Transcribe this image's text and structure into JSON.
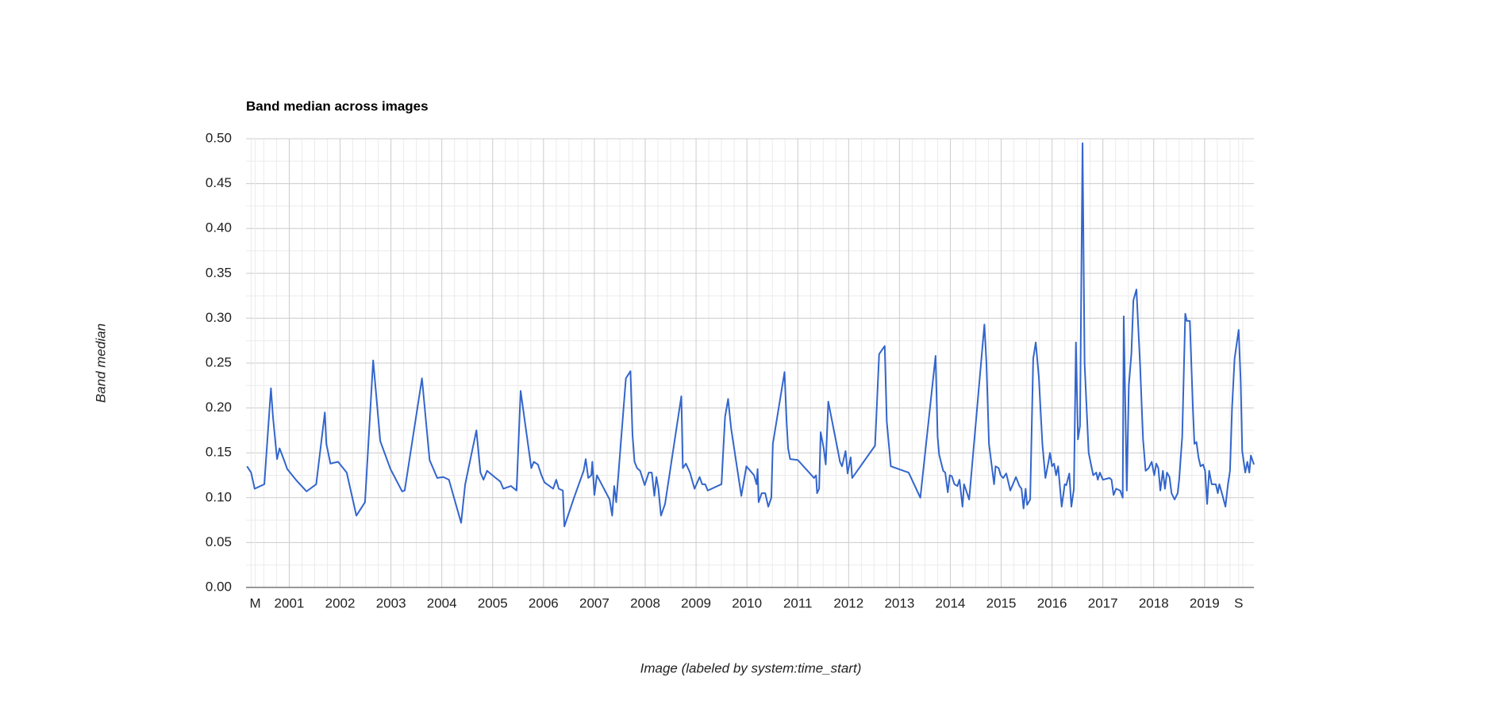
{
  "chart_data": {
    "type": "line",
    "title": "Band median across images",
    "ylabel": "Band median",
    "xlabel": "Image (labeled by system:time_start)",
    "color": "#3366cc",
    "grid": true,
    "minor_grid": true,
    "xlim": [
      2000.15,
      2019.97
    ],
    "xticks": [
      {
        "value": 2000.33,
        "label": "M"
      },
      2001,
      2002,
      2003,
      2004,
      2005,
      2006,
      2007,
      2008,
      2009,
      2010,
      2011,
      2012,
      2013,
      2014,
      2015,
      2016,
      2017,
      2018,
      2019,
      {
        "value": 2019.67,
        "label": "S"
      }
    ],
    "ylim": [
      0,
      0.5
    ],
    "yticks": [
      {
        "value": 0,
        "label": "0.00"
      },
      {
        "value": 0.05,
        "label": "0.05"
      },
      {
        "value": 0.1,
        "label": "0.10"
      },
      {
        "value": 0.15,
        "label": "0.15"
      },
      {
        "value": 0.2,
        "label": "0.20"
      },
      {
        "value": 0.25,
        "label": "0.25"
      },
      {
        "value": 0.3,
        "label": "0.30"
      },
      {
        "value": 0.35,
        "label": "0.35"
      },
      {
        "value": 0.4,
        "label": "0.40"
      },
      {
        "value": 0.45,
        "label": "0.45"
      },
      {
        "value": 0.5,
        "label": "0.50"
      }
    ],
    "x": [
      2000.17,
      2000.25,
      2000.32,
      2000.51,
      2000.64,
      2000.68,
      2000.76,
      2000.81,
      2000.91,
      2000.96,
      2001.13,
      2001.34,
      2001.53,
      2001.7,
      2001.73,
      2001.81,
      2001.96,
      2002.13,
      2002.32,
      2002.49,
      2002.65,
      2002.79,
      2002.99,
      2003.22,
      2003.27,
      2003.61,
      2003.76,
      2003.91,
      2004.03,
      2004.14,
      2004.38,
      2004.46,
      2004.68,
      2004.76,
      2004.82,
      2004.89,
      2005.06,
      2005.15,
      2005.21,
      2005.36,
      2005.47,
      2005.55,
      2005.76,
      2005.81,
      2005.89,
      2005.96,
      2006.02,
      2006.19,
      2006.25,
      2006.3,
      2006.38,
      2006.41,
      2006.6,
      2006.79,
      2006.83,
      2006.88,
      2006.94,
      2006.96,
      2007.0,
      2007.05,
      2007.3,
      2007.35,
      2007.39,
      2007.43,
      2007.62,
      2007.71,
      2007.75,
      2007.79,
      2007.84,
      2007.9,
      2007.99,
      2008.07,
      2008.13,
      2008.18,
      2008.22,
      2008.26,
      2008.31,
      2008.39,
      2008.71,
      2008.74,
      2008.8,
      2008.88,
      2008.97,
      2009.07,
      2009.12,
      2009.18,
      2009.23,
      2009.46,
      2009.5,
      2009.57,
      2009.63,
      2009.69,
      2009.89,
      2009.99,
      2010.14,
      2010.19,
      2010.21,
      2010.23,
      2010.29,
      2010.36,
      2010.42,
      2010.48,
      2010.51,
      2010.74,
      2010.78,
      2010.81,
      2010.85,
      2011.0,
      2011.32,
      2011.36,
      2011.38,
      2011.42,
      2011.45,
      2011.51,
      2011.55,
      2011.6,
      2011.79,
      2011.83,
      2011.87,
      2011.94,
      2011.98,
      2012.04,
      2012.07,
      2012.52,
      2012.6,
      2012.71,
      2012.75,
      2012.83,
      2013.18,
      2013.41,
      2013.71,
      2013.75,
      2013.78,
      2013.86,
      2013.9,
      2013.95,
      2013.99,
      2014.03,
      2014.08,
      2014.14,
      2014.18,
      2014.24,
      2014.27,
      2014.37,
      2014.67,
      2014.71,
      2014.76,
      2014.86,
      2014.89,
      2014.95,
      2014.99,
      2015.04,
      2015.1,
      2015.18,
      2015.29,
      2015.36,
      2015.4,
      2015.44,
      2015.48,
      2015.51,
      2015.57,
      2015.63,
      2015.68,
      2015.74,
      2015.81,
      2015.87,
      2015.93,
      2015.96,
      2016.0,
      2016.04,
      2016.08,
      2016.12,
      2016.19,
      2016.25,
      2016.28,
      2016.34,
      2016.38,
      2016.43,
      2016.47,
      2016.51,
      2016.55,
      2016.6,
      2016.64,
      2016.72,
      2016.81,
      2016.87,
      2016.9,
      2016.94,
      2017.0,
      2017.13,
      2017.17,
      2017.21,
      2017.26,
      2017.34,
      2017.39,
      2017.41,
      2017.47,
      2017.51,
      2017.56,
      2017.6,
      2017.66,
      2017.73,
      2017.79,
      2017.84,
      2017.9,
      2017.96,
      2018.01,
      2018.05,
      2018.09,
      2018.13,
      2018.18,
      2018.22,
      2018.26,
      2018.31,
      2018.35,
      2018.41,
      2018.47,
      2018.5,
      2018.56,
      2018.62,
      2018.65,
      2018.71,
      2018.77,
      2018.8,
      2018.84,
      2018.88,
      2018.92,
      2018.97,
      2019.01,
      2019.05,
      2019.09,
      2019.14,
      2019.22,
      2019.26,
      2019.29,
      2019.35,
      2019.41,
      2019.46,
      2019.5,
      2019.54,
      2019.59,
      2019.67,
      2019.71,
      2019.74,
      2019.8,
      2019.84,
      2019.88,
      2019.91,
      2019.97
    ],
    "values": [
      0.135,
      0.128,
      0.11,
      0.115,
      0.222,
      0.19,
      0.143,
      0.155,
      0.14,
      0.132,
      0.12,
      0.107,
      0.115,
      0.195,
      0.16,
      0.138,
      0.14,
      0.128,
      0.08,
      0.095,
      0.253,
      0.163,
      0.132,
      0.107,
      0.108,
      0.233,
      0.142,
      0.122,
      0.123,
      0.12,
      0.072,
      0.115,
      0.175,
      0.128,
      0.12,
      0.13,
      0.122,
      0.118,
      0.11,
      0.113,
      0.108,
      0.219,
      0.133,
      0.14,
      0.137,
      0.125,
      0.117,
      0.11,
      0.12,
      0.11,
      0.108,
      0.068,
      0.1,
      0.13,
      0.143,
      0.122,
      0.125,
      0.14,
      0.103,
      0.125,
      0.098,
      0.08,
      0.113,
      0.095,
      0.233,
      0.241,
      0.17,
      0.14,
      0.133,
      0.13,
      0.114,
      0.128,
      0.128,
      0.102,
      0.123,
      0.11,
      0.08,
      0.093,
      0.213,
      0.133,
      0.138,
      0.128,
      0.11,
      0.123,
      0.115,
      0.115,
      0.108,
      0.114,
      0.115,
      0.19,
      0.21,
      0.177,
      0.102,
      0.135,
      0.125,
      0.115,
      0.132,
      0.095,
      0.105,
      0.105,
      0.09,
      0.1,
      0.16,
      0.24,
      0.185,
      0.155,
      0.143,
      0.142,
      0.122,
      0.125,
      0.105,
      0.11,
      0.173,
      0.155,
      0.137,
      0.207,
      0.152,
      0.14,
      0.135,
      0.152,
      0.127,
      0.145,
      0.122,
      0.158,
      0.26,
      0.269,
      0.185,
      0.135,
      0.128,
      0.1,
      0.258,
      0.168,
      0.148,
      0.13,
      0.128,
      0.106,
      0.125,
      0.124,
      0.115,
      0.113,
      0.12,
      0.09,
      0.115,
      0.098,
      0.293,
      0.25,
      0.16,
      0.115,
      0.135,
      0.133,
      0.125,
      0.122,
      0.127,
      0.108,
      0.123,
      0.113,
      0.11,
      0.088,
      0.11,
      0.092,
      0.098,
      0.255,
      0.273,
      0.235,
      0.16,
      0.122,
      0.14,
      0.15,
      0.135,
      0.138,
      0.125,
      0.135,
      0.09,
      0.115,
      0.114,
      0.127,
      0.09,
      0.11,
      0.273,
      0.165,
      0.18,
      0.495,
      0.25,
      0.15,
      0.125,
      0.128,
      0.12,
      0.128,
      0.12,
      0.122,
      0.12,
      0.103,
      0.11,
      0.108,
      0.1,
      0.302,
      0.108,
      0.225,
      0.26,
      0.32,
      0.332,
      0.25,
      0.165,
      0.13,
      0.133,
      0.14,
      0.125,
      0.138,
      0.133,
      0.108,
      0.13,
      0.11,
      0.128,
      0.123,
      0.105,
      0.098,
      0.105,
      0.12,
      0.168,
      0.305,
      0.297,
      0.297,
      0.2,
      0.16,
      0.162,
      0.145,
      0.135,
      0.137,
      0.13,
      0.093,
      0.13,
      0.115,
      0.115,
      0.105,
      0.115,
      0.103,
      0.09,
      0.115,
      0.13,
      0.2,
      0.255,
      0.287,
      0.23,
      0.152,
      0.128,
      0.14,
      0.128,
      0.147,
      0.137
    ]
  }
}
